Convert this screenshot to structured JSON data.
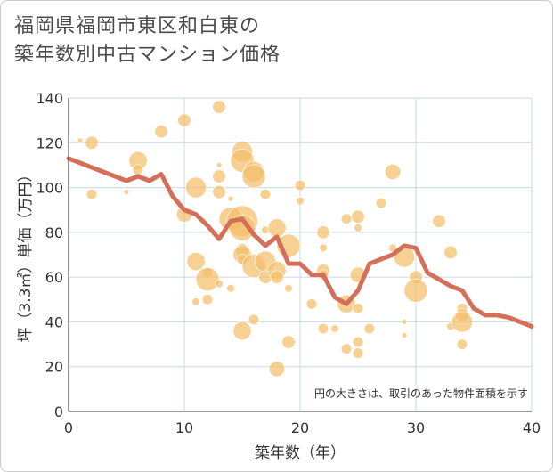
{
  "title_lines": [
    "福岡県福岡市東区和白東の",
    "築年数別中古マンション価格"
  ],
  "colors": {
    "bubble": "#f4be6a",
    "bubble_stroke": "#ffffff",
    "line": "#d4705a",
    "grid": "#c7d7e8",
    "axis": "#333333",
    "frame": "#cccccc"
  },
  "chart_data": {
    "type": "scatter",
    "subtype": "bubble-with-trend-line",
    "xlabel": "築年数（年）",
    "ylabel": "坪（3.3㎡）単価（万円）",
    "xlim": [
      0,
      40
    ],
    "ylim": [
      0,
      140
    ],
    "xticks": [
      0,
      10,
      20,
      30,
      40
    ],
    "yticks": [
      0,
      20,
      40,
      60,
      80,
      100,
      120,
      140
    ],
    "grid": true,
    "annotation": "円の大きさは、取引のあった物件面積を示す",
    "bubbles": [
      {
        "x": 1,
        "y": 121,
        "s": 2
      },
      {
        "x": 2,
        "y": 120,
        "s": 5
      },
      {
        "x": 2,
        "y": 97,
        "s": 4
      },
      {
        "x": 5,
        "y": 98,
        "s": 2
      },
      {
        "x": 6,
        "y": 112,
        "s": 7
      },
      {
        "x": 6,
        "y": 108,
        "s": 4
      },
      {
        "x": 8,
        "y": 125,
        "s": 5
      },
      {
        "x": 10,
        "y": 130,
        "s": 5
      },
      {
        "x": 10,
        "y": 88,
        "s": 6
      },
      {
        "x": 11,
        "y": 100,
        "s": 8
      },
      {
        "x": 11,
        "y": 67,
        "s": 7
      },
      {
        "x": 11,
        "y": 49,
        "s": 3
      },
      {
        "x": 12,
        "y": 62,
        "s": 4
      },
      {
        "x": 12,
        "y": 59,
        "s": 9
      },
      {
        "x": 12,
        "y": 50,
        "s": 4
      },
      {
        "x": 13,
        "y": 136,
        "s": 5
      },
      {
        "x": 13,
        "y": 110,
        "s": 2
      },
      {
        "x": 13,
        "y": 105,
        "s": 5
      },
      {
        "x": 13,
        "y": 98,
        "s": 5
      },
      {
        "x": 13,
        "y": 57,
        "s": 3
      },
      {
        "x": 14,
        "y": 95,
        "s": 2
      },
      {
        "x": 14,
        "y": 86,
        "s": 9
      },
      {
        "x": 14,
        "y": 55,
        "s": 3
      },
      {
        "x": 15,
        "y": 116,
        "s": 8
      },
      {
        "x": 15,
        "y": 112,
        "s": 9
      },
      {
        "x": 15,
        "y": 85,
        "s": 12
      },
      {
        "x": 15,
        "y": 82,
        "s": 10
      },
      {
        "x": 15,
        "y": 72,
        "s": 5
      },
      {
        "x": 15,
        "y": 70,
        "s": 7
      },
      {
        "x": 15,
        "y": 68,
        "s": 4
      },
      {
        "x": 15,
        "y": 36,
        "s": 7
      },
      {
        "x": 16,
        "y": 107,
        "s": 8
      },
      {
        "x": 16,
        "y": 105,
        "s": 9
      },
      {
        "x": 16,
        "y": 65,
        "s": 9
      },
      {
        "x": 16,
        "y": 41,
        "s": 4
      },
      {
        "x": 17,
        "y": 97,
        "s": 4
      },
      {
        "x": 17,
        "y": 81,
        "s": 3
      },
      {
        "x": 17,
        "y": 67,
        "s": 8
      },
      {
        "x": 17,
        "y": 60,
        "s": 5
      },
      {
        "x": 18,
        "y": 82,
        "s": 7
      },
      {
        "x": 18,
        "y": 63,
        "s": 7
      },
      {
        "x": 18,
        "y": 60,
        "s": 5
      },
      {
        "x": 18,
        "y": 19,
        "s": 6
      },
      {
        "x": 19,
        "y": 74,
        "s": 9
      },
      {
        "x": 19,
        "y": 55,
        "s": 3
      },
      {
        "x": 19,
        "y": 31,
        "s": 5
      },
      {
        "x": 20,
        "y": 101,
        "s": 4
      },
      {
        "x": 20,
        "y": 94,
        "s": 3
      },
      {
        "x": 21,
        "y": 48,
        "s": 4
      },
      {
        "x": 22,
        "y": 80,
        "s": 5
      },
      {
        "x": 22,
        "y": 73,
        "s": 3
      },
      {
        "x": 22,
        "y": 63,
        "s": 5
      },
      {
        "x": 22,
        "y": 61,
        "s": 4
      },
      {
        "x": 22,
        "y": 37,
        "s": 4
      },
      {
        "x": 23,
        "y": 37,
        "s": 3
      },
      {
        "x": 24,
        "y": 86,
        "s": 4
      },
      {
        "x": 24,
        "y": 48,
        "s": 7
      },
      {
        "x": 24,
        "y": 28,
        "s": 4
      },
      {
        "x": 25,
        "y": 87,
        "s": 5
      },
      {
        "x": 25,
        "y": 82,
        "s": 3
      },
      {
        "x": 25,
        "y": 61,
        "s": 6
      },
      {
        "x": 25,
        "y": 46,
        "s": 4
      },
      {
        "x": 25,
        "y": 31,
        "s": 4
      },
      {
        "x": 25,
        "y": 26,
        "s": 4
      },
      {
        "x": 26,
        "y": 37,
        "s": 4
      },
      {
        "x": 27,
        "y": 93,
        "s": 4
      },
      {
        "x": 28,
        "y": 107,
        "s": 6
      },
      {
        "x": 28,
        "y": 73,
        "s": 3
      },
      {
        "x": 29,
        "y": 69,
        "s": 8
      },
      {
        "x": 29,
        "y": 40,
        "s": 2
      },
      {
        "x": 29,
        "y": 34,
        "s": 2
      },
      {
        "x": 30,
        "y": 60,
        "s": 5
      },
      {
        "x": 30,
        "y": 54,
        "s": 9
      },
      {
        "x": 32,
        "y": 85,
        "s": 5
      },
      {
        "x": 33,
        "y": 71,
        "s": 5
      },
      {
        "x": 33,
        "y": 38,
        "s": 3
      },
      {
        "x": 34,
        "y": 46,
        "s": 4
      },
      {
        "x": 34,
        "y": 43,
        "s": 5
      },
      {
        "x": 34,
        "y": 40,
        "s": 8
      },
      {
        "x": 34,
        "y": 30,
        "s": 4
      }
    ],
    "trend_line": {
      "x": [
        0,
        3,
        5,
        6,
        7,
        8,
        9,
        10,
        11,
        12,
        13,
        14,
        15,
        16,
        17,
        18,
        19,
        20,
        21,
        22,
        23,
        24,
        25,
        26,
        27,
        28,
        29,
        30,
        31,
        32,
        33,
        34,
        35,
        36,
        37,
        38,
        39,
        40
      ],
      "y": [
        113,
        107,
        103,
        105,
        103,
        106,
        96,
        90,
        88,
        83,
        77,
        85,
        86,
        79,
        74,
        78,
        66,
        66,
        61,
        61,
        51,
        48,
        54,
        66,
        68,
        70,
        74,
        73,
        62,
        59,
        56,
        54,
        46,
        43,
        43,
        42,
        40,
        38
      ]
    }
  }
}
